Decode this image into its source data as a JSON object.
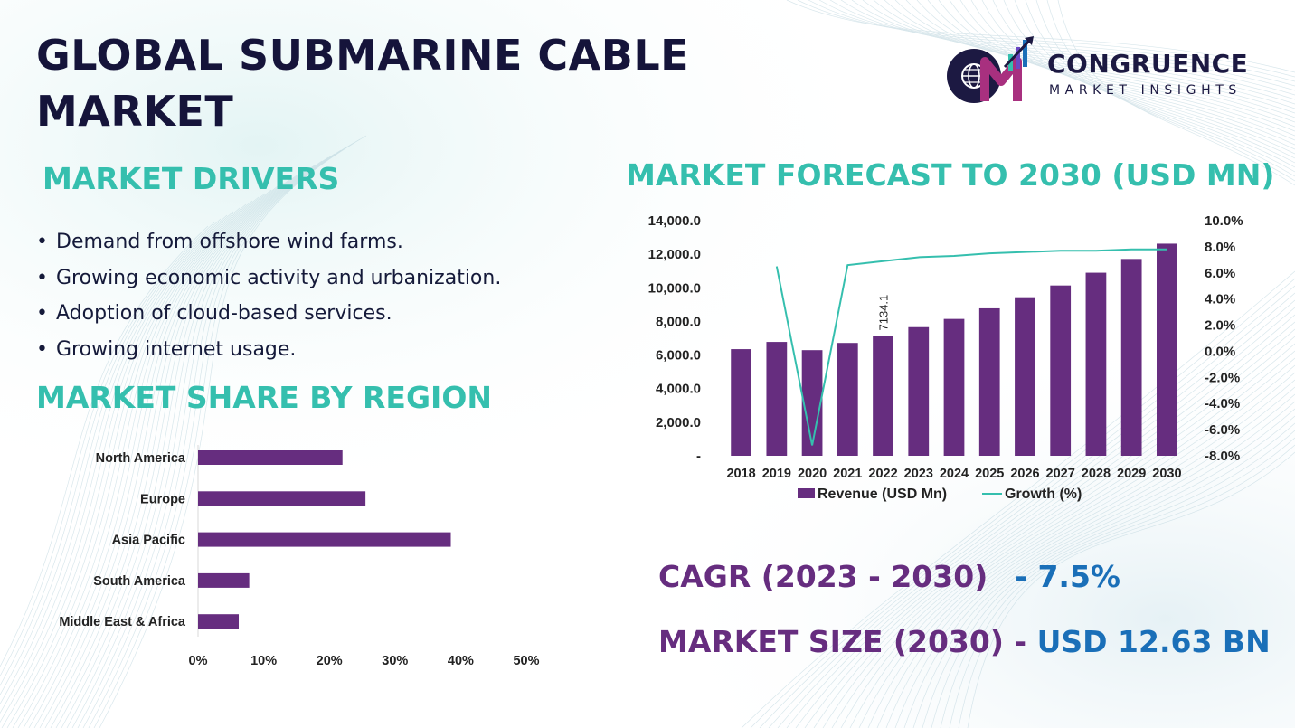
{
  "page_title": "GLOBAL SUBMARINE CABLE MARKET",
  "logo": {
    "name": "CONGRUENCE",
    "subtitle": "MARKET INSIGHTS",
    "monogram": "CM",
    "icon": "globe-bar-chart-logo"
  },
  "drivers": {
    "title": "MARKET DRIVERS",
    "items": [
      "Demand from offshore wind farms.",
      "Growing economic activity and urbanization.",
      "Adoption of cloud-based services.",
      "Growing internet usage."
    ]
  },
  "colors": {
    "accent_teal": "#35bfae",
    "bar_purple": "#662d7f",
    "navy": "#15143a",
    "value_blue": "#1a6fb8"
  },
  "stats": {
    "cagr_label": "CAGR (2023 - 2030)",
    "cagr_value": "- 7.5%",
    "size_label": "MARKET SIZE (2030) -",
    "size_value": "USD 12.63 BN"
  },
  "chart_data": [
    {
      "type": "bar+line",
      "title": "MARKET FORECAST TO 2030 (USD MN)",
      "categories": [
        "2018",
        "2019",
        "2020",
        "2021",
        "2022",
        "2023",
        "2024",
        "2025",
        "2026",
        "2027",
        "2028",
        "2029",
        "2030"
      ],
      "series": [
        {
          "name": "Revenue (USD Mn)",
          "type": "bar",
          "axis": "left",
          "values": [
            6350,
            6780,
            6290,
            6720,
            7134.1,
            7660,
            8150,
            8780,
            9440,
            10140,
            10900,
            11720,
            12630
          ]
        },
        {
          "name": "Growth (%)",
          "type": "line",
          "axis": "right",
          "values": [
            null,
            6.5,
            -7.2,
            6.6,
            6.9,
            7.2,
            7.3,
            7.5,
            7.6,
            7.7,
            7.7,
            7.8,
            7.8
          ]
        }
      ],
      "data_labels": [
        {
          "category": "2022",
          "text": "7134.1"
        }
      ],
      "y_left": {
        "min": 0,
        "max": 14000,
        "ticks": [
          {
            "value": 0,
            "label": "-"
          },
          {
            "value": 2000,
            "label": "2,000.0"
          },
          {
            "value": 4000,
            "label": "4,000.0"
          },
          {
            "value": 6000,
            "label": "6,000.0"
          },
          {
            "value": 8000,
            "label": "8,000.0"
          },
          {
            "value": 10000,
            "label": "10,000.0"
          },
          {
            "value": 12000,
            "label": "12,000.0"
          },
          {
            "value": 14000,
            "label": "14,000.0"
          }
        ]
      },
      "y_right": {
        "min": -8,
        "max": 10,
        "ticks": [
          {
            "value": -8,
            "label": "-8.0%"
          },
          {
            "value": -6,
            "label": "-6.0%"
          },
          {
            "value": -4,
            "label": "-4.0%"
          },
          {
            "value": -2,
            "label": "-2.0%"
          },
          {
            "value": 0,
            "label": "0.0%"
          },
          {
            "value": 2,
            "label": "2.0%"
          },
          {
            "value": 4,
            "label": "4.0%"
          },
          {
            "value": 6,
            "label": "6.0%"
          },
          {
            "value": 8,
            "label": "8.0%"
          },
          {
            "value": 10,
            "label": "10.0%"
          }
        ]
      },
      "legend": [
        "Revenue (USD Mn)",
        "Growth (%)"
      ],
      "legend_position": "bottom",
      "grid": false
    },
    {
      "type": "bar",
      "orientation": "horizontal",
      "title": "MARKET SHARE BY REGION",
      "categories": [
        "North America",
        "Europe",
        "Asia Pacific",
        "South America",
        "Middle East & Africa"
      ],
      "values": [
        22,
        25.5,
        38.5,
        7.8,
        6.2
      ],
      "x_ticks": [
        "0%",
        "10%",
        "20%",
        "30%",
        "40%",
        "50%"
      ],
      "xlim": [
        0,
        50
      ],
      "grid": false
    }
  ]
}
